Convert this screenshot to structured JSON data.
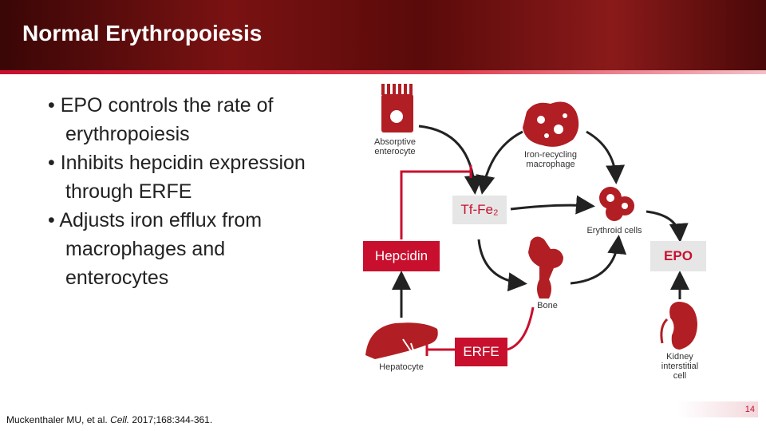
{
  "header": {
    "title": "Normal Erythropoiesis"
  },
  "bullets": [
    "EPO controls the rate of erythropoiesis",
    "Inhibits hepcidin expression through ERFE",
    "Adjusts iron efflux from macrophages and enterocytes"
  ],
  "diagram": {
    "nodes": {
      "enterocyte": "Absorptive enterocyte",
      "macrophage": "Iron-recycling macrophage",
      "tffe": "Tf-Fe₂",
      "erythroid": "Erythroid cells",
      "hepcidin": "Hepcidin",
      "epo": "EPO",
      "bone": "Bone",
      "hepatocyte": "Hepatocyte",
      "erfe": "ERFE",
      "kidney": "Kidney interstitial cell"
    }
  },
  "footer": {
    "citation": {
      "authors": "Muckenthaler MU, et al.",
      "journal": "Cell.",
      "details": "2017;168:344-361."
    },
    "page_number": "14"
  }
}
